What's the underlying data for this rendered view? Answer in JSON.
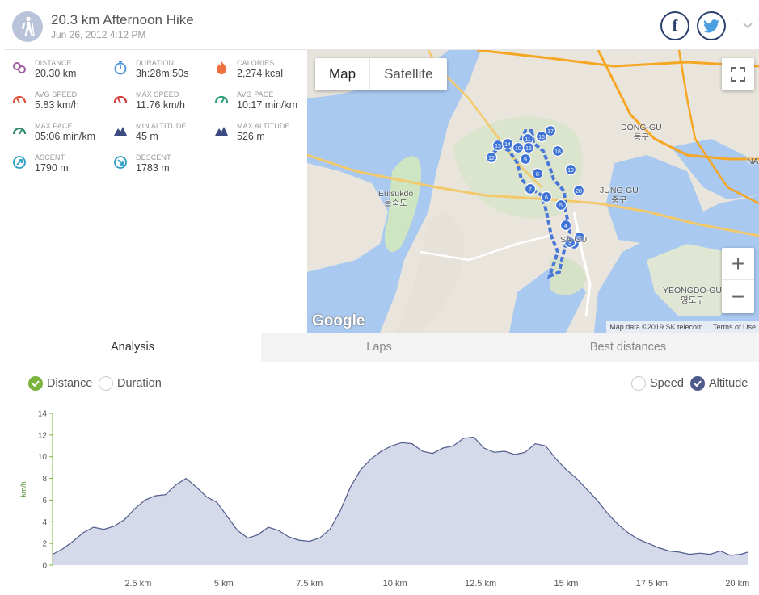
{
  "header": {
    "title": "20.3 km Afternoon Hike",
    "date": "Jun 26, 2012 4:12 PM",
    "activity_icon": "hiker-icon",
    "facebook_label": "f",
    "twitter_icon": "twitter-bird-icon"
  },
  "stats": [
    {
      "label": "DISTANCE",
      "value": "20.30 km",
      "icon": "distance-pin-icon",
      "color": "#a05ea0"
    },
    {
      "label": "DURATION",
      "value": "3h:28m:50s",
      "icon": "stopwatch-icon",
      "color": "#4a90d9"
    },
    {
      "label": "CALORIES",
      "value": "2,274 kcal",
      "icon": "flame-icon",
      "color": "#f07040"
    },
    {
      "label": "AVG SPEED",
      "value": "5.83 km/h",
      "icon": "speedometer-icon",
      "color": "#e0543c"
    },
    {
      "label": "MAX SPEED",
      "value": "11.76 km/h",
      "icon": "speedometer-icon",
      "color": "#d43c3c"
    },
    {
      "label": "AVG PACE",
      "value": "10:17 min/km",
      "icon": "pace-gauge-icon",
      "color": "#2e9e7a"
    },
    {
      "label": "MAX PACE",
      "value": "05:06 min/km",
      "icon": "pace-gauge-icon",
      "color": "#2e8a6a"
    },
    {
      "label": "MIN ALTITUDE",
      "value": "45 m",
      "icon": "mountain-icon",
      "color": "#3b4a80"
    },
    {
      "label": "MAX ALTITUDE",
      "value": "526 m",
      "icon": "mountain-icon",
      "color": "#3b4a80"
    },
    {
      "label": "ASCENT",
      "value": "1790 m",
      "icon": "ascent-arrow-icon",
      "color": "#2d9fc4"
    },
    {
      "label": "DESCENT",
      "value": "1783 m",
      "icon": "descent-arrow-icon",
      "color": "#2d9fc4"
    }
  ],
  "map": {
    "type_options": [
      "Map",
      "Satellite"
    ],
    "selected_type": "Map",
    "zoom_in": "+",
    "zoom_out": "−",
    "logo": "Google",
    "attribution": "Map data ©2019 SK telecom",
    "terms": "Terms of Use",
    "places": [
      {
        "name": "DONG-GU",
        "sub": "동구"
      },
      {
        "name": "JUNG-GU",
        "sub": "중구"
      },
      {
        "name": "Eulsukdo",
        "sub": "을숙도"
      },
      {
        "name": "YEONGDO-GU",
        "sub": "영도구"
      },
      {
        "name": "SA-GU",
        "sub": ""
      },
      {
        "name": "NA",
        "sub": ""
      }
    ],
    "markers": [
      "1",
      "2",
      "3",
      "4",
      "5",
      "6",
      "7",
      "8",
      "9",
      "10",
      "11",
      "12",
      "13",
      "14",
      "15",
      "16",
      "17",
      "18",
      "19",
      "20"
    ]
  },
  "tabs": [
    {
      "label": "Analysis",
      "active": true
    },
    {
      "label": "Laps",
      "active": false
    },
    {
      "label": "Best distances",
      "active": false
    }
  ],
  "analysis": {
    "x_options": [
      {
        "label": "Distance",
        "checked": true
      },
      {
        "label": "Duration",
        "checked": false
      }
    ],
    "y_options": [
      {
        "label": "Speed",
        "checked": false
      },
      {
        "label": "Altitude",
        "checked": true
      }
    ]
  },
  "chart_data": {
    "type": "area",
    "ylabel": "km/h",
    "ylim": [
      0,
      14
    ],
    "yticks": [
      "0",
      "2",
      "4",
      "6",
      "8",
      "10",
      "12",
      "14"
    ],
    "xlim": [
      0,
      20.3
    ],
    "xticks": [
      {
        "value": 2.5,
        "label": "2.5 km"
      },
      {
        "value": 5,
        "label": "5 km"
      },
      {
        "value": 7.5,
        "label": "7.5 km"
      },
      {
        "value": 10,
        "label": "10 km"
      },
      {
        "value": 12.5,
        "label": "12.5 km"
      },
      {
        "value": 15,
        "label": "15 km"
      },
      {
        "value": 17.5,
        "label": "17.5 km"
      },
      {
        "value": 20,
        "label": "20 km"
      }
    ],
    "series": [
      {
        "fill": "#d5d9ea",
        "stroke": "#4f5b8c",
        "x": [
          0,
          0.3,
          0.6,
          0.9,
          1.2,
          1.5,
          1.8,
          2.1,
          2.4,
          2.7,
          3.0,
          3.3,
          3.6,
          3.9,
          4.2,
          4.5,
          4.8,
          5.1,
          5.4,
          5.7,
          6.0,
          6.3,
          6.6,
          6.9,
          7.2,
          7.5,
          7.8,
          8.1,
          8.4,
          8.7,
          9.0,
          9.3,
          9.6,
          9.9,
          10.2,
          10.5,
          10.8,
          11.1,
          11.4,
          11.7,
          12.0,
          12.3,
          12.6,
          12.9,
          13.2,
          13.5,
          13.8,
          14.1,
          14.4,
          14.7,
          15.0,
          15.3,
          15.6,
          15.9,
          16.2,
          16.5,
          16.8,
          17.1,
          17.4,
          17.7,
          18.0,
          18.3,
          18.6,
          18.9,
          19.2,
          19.5,
          19.8,
          20.1,
          20.3
        ],
        "y": [
          1.0,
          1.5,
          2.2,
          3.0,
          3.5,
          3.3,
          3.6,
          4.2,
          5.2,
          6.0,
          6.4,
          6.5,
          7.4,
          8.0,
          7.2,
          6.3,
          5.8,
          4.5,
          3.2,
          2.5,
          2.8,
          3.5,
          3.2,
          2.6,
          2.3,
          2.2,
          2.5,
          3.3,
          5.0,
          7.2,
          8.8,
          9.8,
          10.5,
          11.0,
          11.3,
          11.2,
          10.5,
          10.3,
          10.8,
          11.0,
          11.7,
          11.8,
          10.8,
          10.4,
          10.5,
          10.2,
          10.4,
          11.2,
          11.0,
          9.8,
          8.8,
          8.0,
          7.0,
          6.0,
          4.8,
          3.8,
          3.0,
          2.4,
          2.0,
          1.6,
          1.3,
          1.2,
          1.0,
          1.1,
          1.0,
          1.3,
          0.9,
          1.0,
          1.2
        ]
      }
    ]
  }
}
